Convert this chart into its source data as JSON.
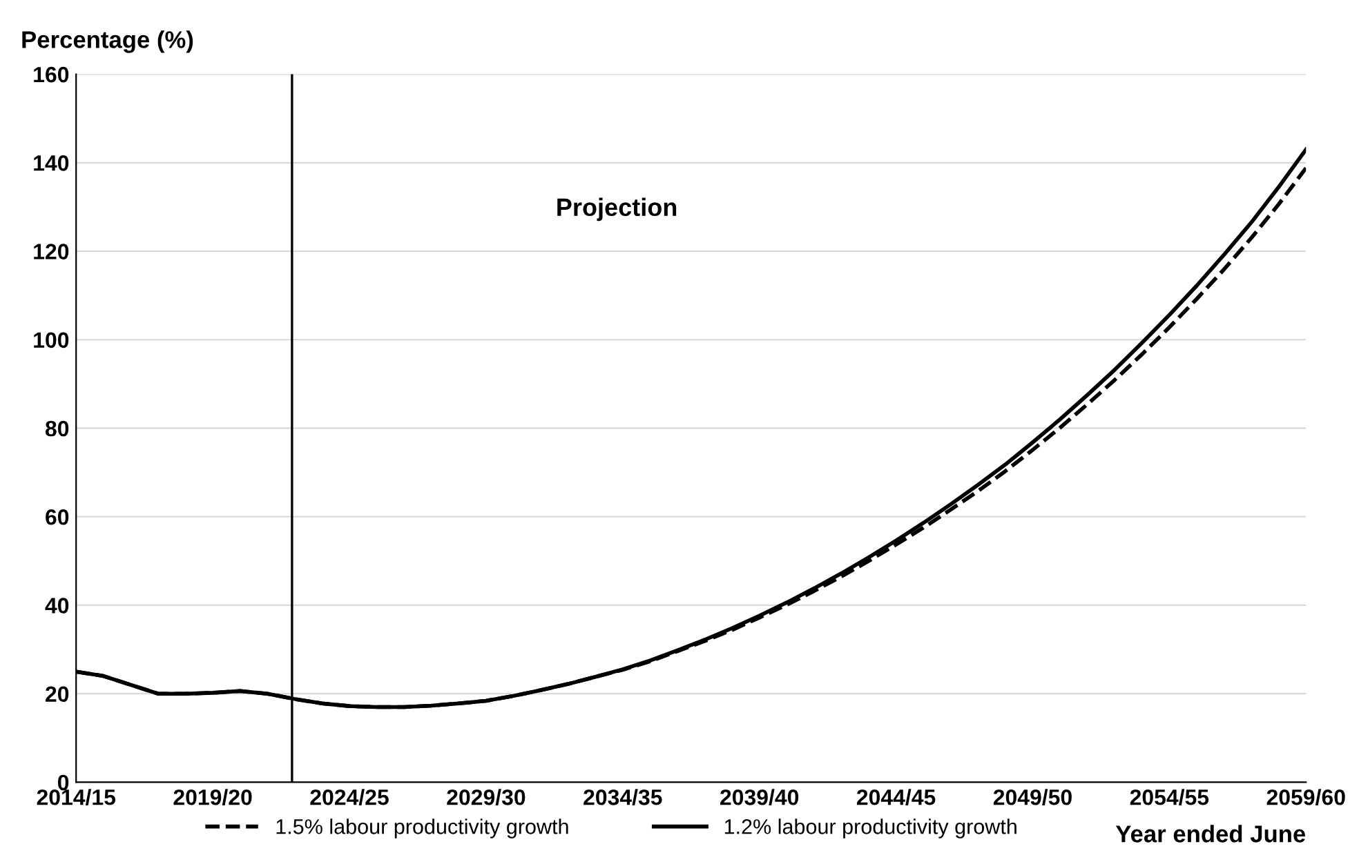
{
  "chart_data": {
    "type": "line",
    "ylabel": "Percentage (%)",
    "xlabel": "Year ended June",
    "annotations": [
      "Projection"
    ],
    "categories": [
      "2014/15",
      null,
      null,
      null,
      null,
      "2019/20",
      null,
      null,
      null,
      null,
      "2024/25",
      null,
      null,
      null,
      null,
      "2029/30",
      null,
      null,
      null,
      null,
      "2034/35",
      null,
      null,
      null,
      null,
      "2039/40",
      null,
      null,
      null,
      null,
      "2044/45",
      null,
      null,
      null,
      null,
      "2049/50",
      null,
      null,
      null,
      null,
      "2054/55",
      null,
      null,
      null,
      null,
      "2059/60"
    ],
    "series": [
      {
        "name": "1.5% labour productivity growth",
        "color": "#000000",
        "line_style": "dashed",
        "values": [
          25,
          24,
          22,
          20,
          20,
          20.2,
          20.6,
          20,
          18.8,
          17.8,
          17.2,
          17,
          17,
          17.3,
          17.8,
          18.4,
          19.5,
          20.8,
          22.2,
          23.8,
          25.4,
          27.3,
          29.6,
          31.9,
          34.4,
          37.2,
          40.1,
          43.2,
          46.5,
          50,
          53.7,
          57.5,
          61.6,
          65.8,
          70.3,
          75.1,
          80.1,
          85.4,
          90.9,
          96.7,
          102.8,
          109.2,
          115.9,
          123,
          130.6,
          138.8
        ]
      },
      {
        "name": "1.2% labour productivity growth",
        "color": "#000000",
        "line_style": "solid",
        "values": [
          25,
          24,
          22,
          20,
          20,
          20.2,
          20.6,
          20,
          18.8,
          17.8,
          17.2,
          17,
          17,
          17.3,
          17.8,
          18.4,
          19.5,
          20.8,
          22.2,
          23.8,
          25.5,
          27.5,
          29.8,
          32.2,
          34.8,
          37.6,
          40.6,
          43.8,
          47.2,
          50.8,
          54.6,
          58.6,
          62.8,
          67.2,
          71.8,
          76.8,
          82,
          87.5,
          93.2,
          99.3,
          105.6,
          112.2,
          119.2,
          126.5,
          134.5,
          143
        ]
      }
    ],
    "ylim": [
      0,
      160
    ],
    "yticks": [
      0,
      20,
      40,
      60,
      80,
      100,
      120,
      140,
      160
    ],
    "grid": "y",
    "legend": "bottom",
    "marker": "none"
  }
}
